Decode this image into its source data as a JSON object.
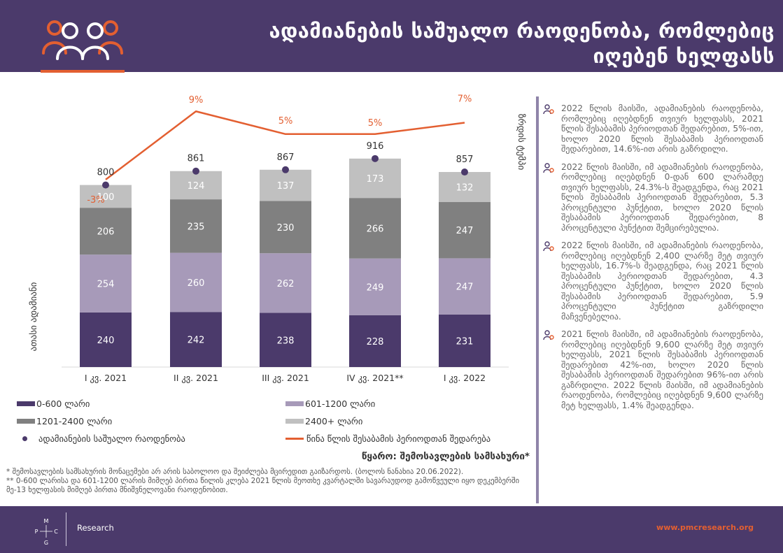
{
  "header": {
    "title_line1": "ადამიანების საშუალო რაოდენობა, რომლებიც",
    "title_line2": "იღებენ ხელფასს"
  },
  "chart_data": {
    "type": "bar",
    "categories": [
      "I კვ. 2021",
      "II კვ. 2021",
      "III კვ. 2021",
      "IV კვ. 2021**",
      "I კვ. 2022"
    ],
    "series": [
      {
        "name": "0-600 ლარი",
        "color": "#4b3a6b",
        "values": [
          240,
          242,
          238,
          228,
          231
        ]
      },
      {
        "name": "601-1200 ლარი",
        "color": "#a79ab9",
        "values": [
          254,
          260,
          262,
          249,
          247
        ]
      },
      {
        "name": "1201-2400 ლარი",
        "color": "#808080",
        "values": [
          206,
          235,
          230,
          266,
          247
        ]
      },
      {
        "name": "2400+ ლარი",
        "color": "#c0c0c0",
        "values": [
          100,
          124,
          137,
          173,
          132
        ]
      }
    ],
    "totals": {
      "name": "ადამიანების საშუალო რაოდენობა",
      "color": "#4b3a6b",
      "values": [
        800,
        861,
        867,
        916,
        857
      ]
    },
    "growth": {
      "name": "წინა წლის შესაბამის პერიოდთან შედარება",
      "color": "#e35f31",
      "values": [
        -3,
        9,
        5,
        5,
        7
      ],
      "labels": [
        "-3%",
        "9%",
        "5%",
        "5%",
        "7%"
      ]
    },
    "ylabel": "ათასი ადამიანი",
    "y2label": "ზრდის ტემპი",
    "ylim": [
      0,
      1000
    ]
  },
  "legend": {
    "s1": "0-600 ლარი",
    "s2": "601-1200 ლარი",
    "s3": "1201-2400 ლარი",
    "s4": "2400+ ლარი",
    "dot": "ადამიანების საშუალო რაოდენობა",
    "line": "წინა წლის შესაბამის პერიოდთან შედარება"
  },
  "source": "წყარო: შემოსავლების სამსახური*",
  "footnotes": {
    "f1": "* შემოსავლების სამსახურის მონაცემები არ არის საბოლოო და შეიძლება მცირედით გაიზარდოს. (ბოლოს ნანახია 20.06.2022).",
    "f2": "** 0-600 ლარისა და 601-1200 ლარის მიმღებ პირთა წილის კლება 2021 წლის მეოთხე კვარტალში სავარაუდოდ გამოწვეული იყო დეკემბერში მე-13 ხელფასის მიმღებ პირთა მნიშვნელოვანი რაოდენობით."
  },
  "notes": [
    "2022 წლის მაისში, ადამიანების რაოდენობა, რომლებიც იღებდნენ თვიურ ხელფასს, 2021 წლის შესაბამის პერიოდთან შედარებით, 5%-ით, ხოლო 2020 წლის შესაბამის პერიოდთან შედარებით, 14.6%-ით არის გაზრდილი.",
    "2022 წლის მაისში, იმ ადამიანების რაოდენობა, რომლებიც იღებდნენ 0-დან 600 ლარამდე თვიურ ხელფასს, 24.3%-ს შეადგენდა, რაც 2021 წლის შესაბამის პერიოდთან შედარებით, 5.3 პროცენტული პუნქტით, ხოლო 2020 წლის შესაბამის პერიოდთან შედარებით, 8 პროცენტული პუნქტით შემცირებულია.",
    "2022 წლის მაისში, იმ ადამიანების რაოდენობა, რომლებიც იღებდნენ 2,400 ლარზე მეტ თვიურ ხელფასს, 16.7%-ს შეადგენდა, რაც 2021 წლის შესაბამის პერიოდთან შედარებით, 4.3 პროცენტული პუნქტით, ხოლო 2020 წლის შესაბამის პერიოდთან შედარებით, 5.9 პროცენტული პუნქტით გაზრდილი მაჩვენებელია.",
    "2021 წლის მაისში, იმ ადამიანების რაოდენობა, რომლებიც იღებდნენ 9,600 ლარზე მეტ თვიურ ხელფასს, 2021 წლის შესაბამის პერიოდთან შედარებით 42%-ით, ხოლო 2020 წლის შესაბამის პერიოდთან შედარებით 96%-ით არის გაზრდილი. 2022 წლის მაისში, იმ ადამიანების რაოდენობა, რომლებიც იღებდნენ 9,600 ლარზე მეტ ხელფასს, 1.4% შეადგენდა."
  ],
  "footer": {
    "logo_letters": {
      "p": "P",
      "m": "M",
      "c": "C",
      "g": "G"
    },
    "research": "Research",
    "site": "www.pmcresearch.org"
  },
  "colors": {
    "brand": "#4b3a6b",
    "accent": "#e35f31",
    "divider": "#8f84a9"
  }
}
